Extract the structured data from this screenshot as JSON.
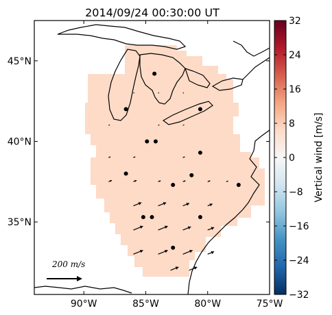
{
  "title": "2014/09/24 00:30:00 UT",
  "colorbar": {
    "label": "Vertical wind [m/s]",
    "ticks": [
      "32",
      "24",
      "16",
      "8",
      "0",
      "−8",
      "−16",
      "−24",
      "−32"
    ],
    "min": -32,
    "max": 32,
    "colors": [
      "#053061",
      "#2166ac",
      "#4393c3",
      "#92c5de",
      "#d1e5f0",
      "#f7f7f7",
      "#fddbc7",
      "#f4a582",
      "#d6604d",
      "#b2182b",
      "#67001f"
    ]
  },
  "map": {
    "lon_range": [
      -94,
      -75
    ],
    "lat_range": [
      30.5,
      47.5
    ],
    "x_ticks": [
      {
        "lon": -90,
        "label": "90°W"
      },
      {
        "lon": -85,
        "label": "85°W"
      },
      {
        "lon": -80,
        "label": "80°W"
      },
      {
        "lon": -75,
        "label": "75°W"
      }
    ],
    "y_ticks": [
      {
        "lat": 45,
        "label": "45°N"
      },
      {
        "lat": 40,
        "label": "40°N"
      },
      {
        "lat": 35,
        "label": "35°N"
      }
    ],
    "field_value_ms": 4,
    "field_color": "#fddbc7"
  },
  "scale_arrow": {
    "label": "200 m/s",
    "speed_ms": 200
  },
  "stations": [
    {
      "lon": -86.6,
      "lat": 42.0
    },
    {
      "lon": -84.3,
      "lat": 44.2
    },
    {
      "lon": -80.6,
      "lat": 42.0
    },
    {
      "lon": -84.9,
      "lat": 40.0
    },
    {
      "lon": -84.2,
      "lat": 40.0
    },
    {
      "lon": -80.6,
      "lat": 39.3
    },
    {
      "lon": -86.6,
      "lat": 38.0
    },
    {
      "lon": -82.8,
      "lat": 37.3
    },
    {
      "lon": -81.3,
      "lat": 37.9
    },
    {
      "lon": -77.5,
      "lat": 37.3
    },
    {
      "lon": -85.2,
      "lat": 35.3
    },
    {
      "lon": -84.5,
      "lat": 35.3
    },
    {
      "lon": -80.6,
      "lat": 35.3
    },
    {
      "lon": -82.8,
      "lat": 33.4
    }
  ],
  "vectors": [
    {
      "lon": -86.0,
      "lat": 36.0,
      "u": 25,
      "v": 10
    },
    {
      "lon": -84.0,
      "lat": 36.0,
      "u": 25,
      "v": 10
    },
    {
      "lon": -82.0,
      "lat": 36.0,
      "u": 20,
      "v": 8
    },
    {
      "lon": -80.0,
      "lat": 36.0,
      "u": 15,
      "v": 6
    },
    {
      "lon": -86.0,
      "lat": 34.5,
      "u": 30,
      "v": 12
    },
    {
      "lon": -84.0,
      "lat": 34.5,
      "u": 30,
      "v": 12
    },
    {
      "lon": -82.0,
      "lat": 34.5,
      "u": 25,
      "v": 10
    },
    {
      "lon": -80.0,
      "lat": 34.5,
      "u": 20,
      "v": 8
    },
    {
      "lon": -86.0,
      "lat": 33.0,
      "u": 30,
      "v": 12
    },
    {
      "lon": -84.0,
      "lat": 33.0,
      "u": 30,
      "v": 12
    },
    {
      "lon": -82.0,
      "lat": 33.0,
      "u": 30,
      "v": 12
    },
    {
      "lon": -80.0,
      "lat": 33.0,
      "u": 20,
      "v": 8
    },
    {
      "lon": -83.0,
      "lat": 32.0,
      "u": 25,
      "v": 10
    },
    {
      "lon": -81.5,
      "lat": 32.0,
      "u": 25,
      "v": 10
    },
    {
      "lon": -88.0,
      "lat": 37.5,
      "u": 10,
      "v": 4
    },
    {
      "lon": -86.0,
      "lat": 37.5,
      "u": 10,
      "v": 4
    },
    {
      "lon": -84.0,
      "lat": 37.5,
      "u": 8,
      "v": 3
    },
    {
      "lon": -82.0,
      "lat": 37.5,
      "u": 8,
      "v": 3
    },
    {
      "lon": -80.0,
      "lat": 37.5,
      "u": 8,
      "v": 3
    },
    {
      "lon": -78.5,
      "lat": 37.5,
      "u": 6,
      "v": 2
    },
    {
      "lon": -88.0,
      "lat": 39.0,
      "u": 6,
      "v": 2
    },
    {
      "lon": -86.0,
      "lat": 39.0,
      "u": 6,
      "v": 2
    },
    {
      "lon": -82.0,
      "lat": 39.0,
      "u": 6,
      "v": 2
    },
    {
      "lon": -88.0,
      "lat": 41.0,
      "u": 4,
      "v": 1
    },
    {
      "lon": -84.0,
      "lat": 41.0,
      "u": 4,
      "v": 1
    },
    {
      "lon": -82.0,
      "lat": 41.0,
      "u": 4,
      "v": 1
    },
    {
      "lon": -86.0,
      "lat": 43.0,
      "u": 3,
      "v": 1
    },
    {
      "lon": -84.0,
      "lat": 43.0,
      "u": 3,
      "v": 1
    },
    {
      "lon": -82.0,
      "lat": 43.0,
      "u": 3,
      "v": 1
    }
  ]
}
